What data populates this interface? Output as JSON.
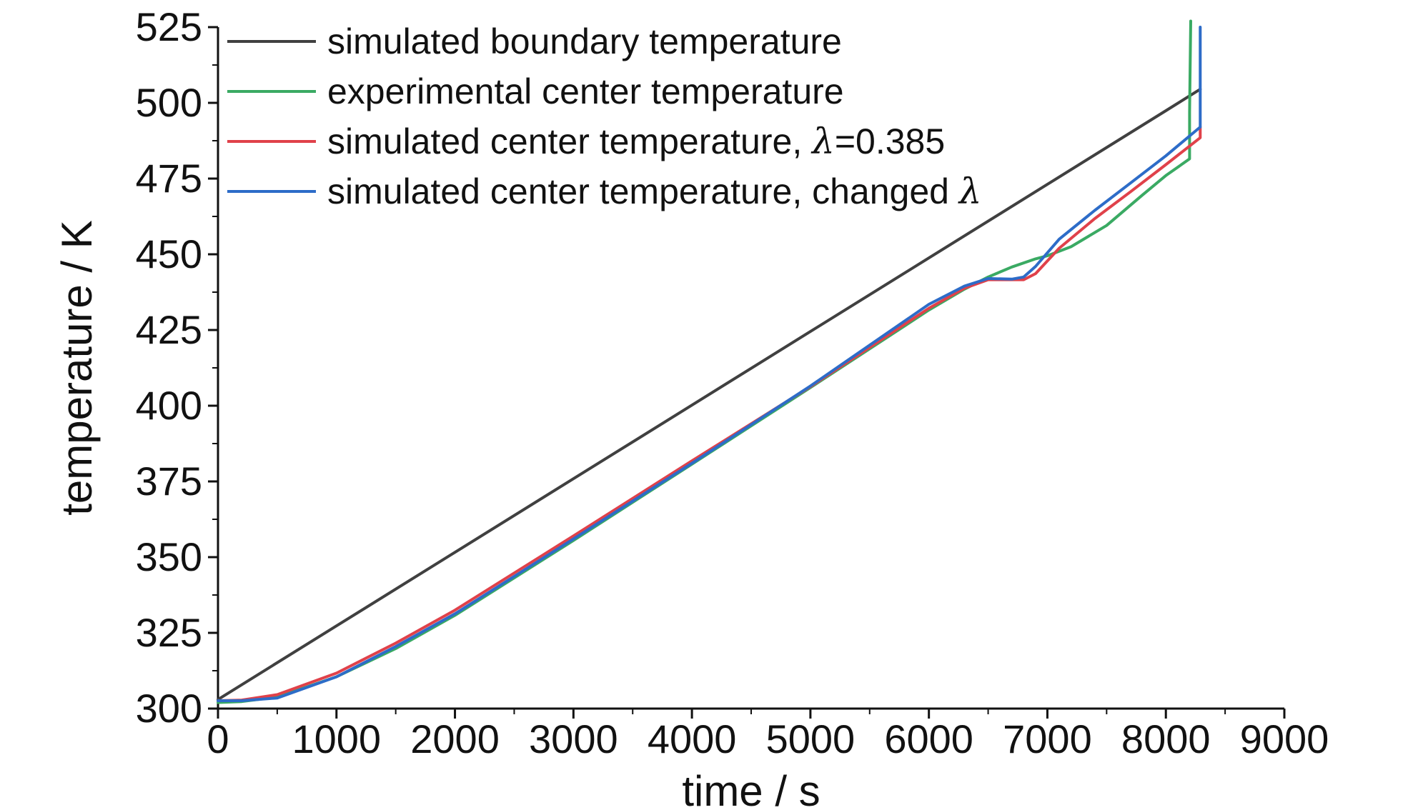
{
  "chart_data": {
    "type": "line",
    "xlabel": "time / s",
    "ylabel": "temperature / K",
    "xlim": [
      0,
      9000
    ],
    "ylim": [
      300,
      525
    ],
    "x_ticks": [
      "0",
      "1000",
      "2000",
      "3000",
      "4000",
      "5000",
      "6000",
      "7000",
      "8000",
      "9000"
    ],
    "y_ticks": [
      "300",
      "325",
      "350",
      "375",
      "400",
      "425",
      "450",
      "475",
      "500",
      "525"
    ],
    "grid": false,
    "legend_position": "top-left",
    "series": [
      {
        "name": "simulated boundary temperature",
        "color": "#404040",
        "x": [
          0,
          1000,
          2000,
          3000,
          4000,
          5000,
          6000,
          7000,
          8000,
          8290
        ],
        "y": [
          303,
          327.3,
          351.6,
          375.9,
          400.2,
          424.5,
          448.8,
          473.1,
          497.4,
          504.5
        ]
      },
      {
        "name": "experimental center temperature",
        "color": "#3aaa63",
        "x": [
          0,
          200,
          500,
          1000,
          1500,
          2000,
          3000,
          4000,
          5000,
          6000,
          6300,
          6500,
          6700,
          6900,
          7000,
          7200,
          7500,
          7800,
          8000,
          8200,
          8200,
          8210
        ],
        "y": [
          302,
          302.3,
          303.8,
          310.5,
          319.8,
          330.8,
          355.5,
          380.7,
          406,
          431.6,
          438.5,
          442.5,
          445.8,
          448.5,
          449.5,
          452.5,
          459.5,
          469.5,
          476,
          481.5,
          497,
          530
        ]
      },
      {
        "name": "simulated center temperature, λ=0.385",
        "color": "#e0414a",
        "x": [
          0,
          200,
          500,
          1000,
          1500,
          2000,
          3000,
          4000,
          5000,
          6000,
          6300,
          6500,
          6700,
          6800,
          6900,
          7100,
          7400,
          7700,
          8000,
          8290,
          8290
        ],
        "y": [
          302.6,
          302.8,
          304.6,
          311.7,
          321.6,
          332.5,
          357,
          381.8,
          406.3,
          432.2,
          438.8,
          441.6,
          441.6,
          441.6,
          443.6,
          452,
          461.8,
          470.6,
          479.6,
          488.5,
          492
        ]
      },
      {
        "name": "simulated center temperature, changed λ",
        "color": "#2d6cc8",
        "x": [
          0,
          200,
          500,
          1000,
          1500,
          2000,
          3000,
          4000,
          5000,
          6000,
          6300,
          6500,
          6700,
          6800,
          6900,
          7100,
          7400,
          7700,
          8000,
          8290,
          8290
        ],
        "y": [
          302.6,
          302.6,
          303.5,
          310.5,
          320.5,
          331.3,
          356,
          381,
          406.5,
          433.5,
          439.5,
          442,
          441.8,
          442.5,
          446,
          455,
          464.5,
          473.5,
          482.5,
          492,
          525
        ]
      }
    ]
  }
}
